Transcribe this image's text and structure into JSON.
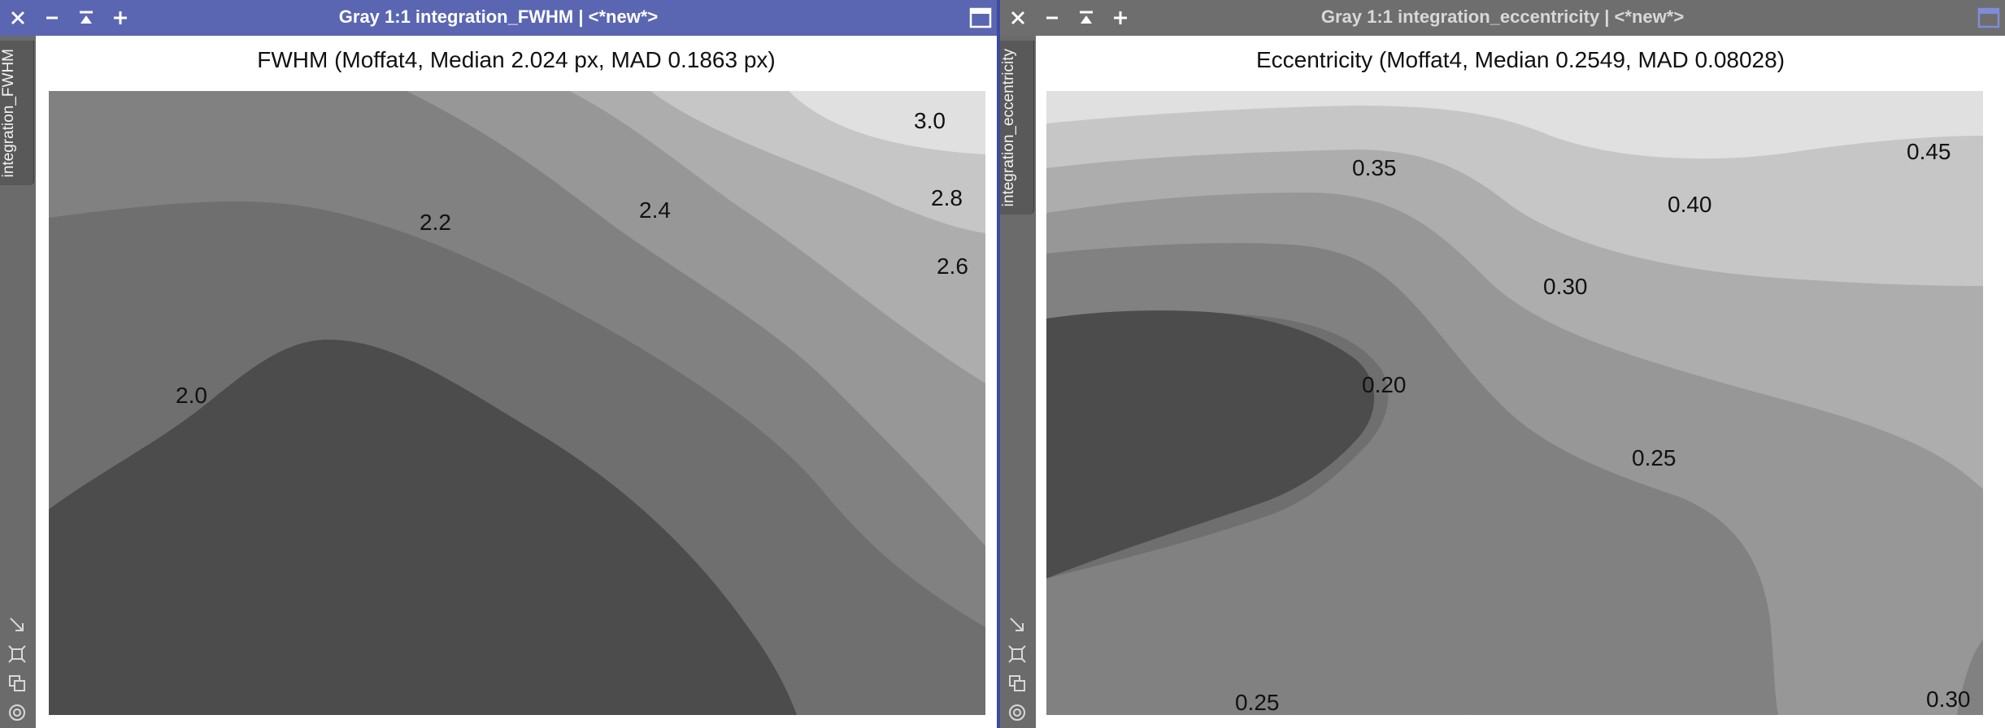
{
  "windows": [
    {
      "title": "Gray 1:1 integration_FWHM | <*new*>",
      "tab_label": "integration_FWHM",
      "plot_title": "FWHM (Moffat4, Median 2.024 px, MAD 0.1863 px)",
      "active": true,
      "contour_labels": [
        "3.0",
        "2.8",
        "2.6",
        "2.4",
        "2.2",
        "2.0"
      ]
    },
    {
      "title": "Gray 1:1 integration_eccentricity | <*new*>",
      "tab_label": "integration_eccentricity",
      "plot_title": "Eccentricity (Moffat4, Median 0.2549, MAD 0.08028)",
      "active": false,
      "contour_labels": [
        "0.45",
        "0.40",
        "0.35",
        "0.30",
        "0.20",
        "0.25",
        "0.25",
        "0.30"
      ]
    }
  ],
  "icons": {
    "close": "close-icon",
    "minimize": "minimize-icon",
    "shade": "shade-icon",
    "maximize": "plus-icon",
    "restore": "window-maximize-icon",
    "tools": [
      "resize-icon",
      "fit-icon",
      "clone-icon",
      "target-icon"
    ]
  },
  "colors": {
    "active_title": "#5a66b1",
    "inactive_title": "#6e6e6e",
    "contour_levels": [
      "#4a4a4a",
      "#5e5e5e",
      "#6f6f6f",
      "#818181",
      "#979797",
      "#adadad",
      "#c6c6c6",
      "#e0e0e0"
    ]
  }
}
